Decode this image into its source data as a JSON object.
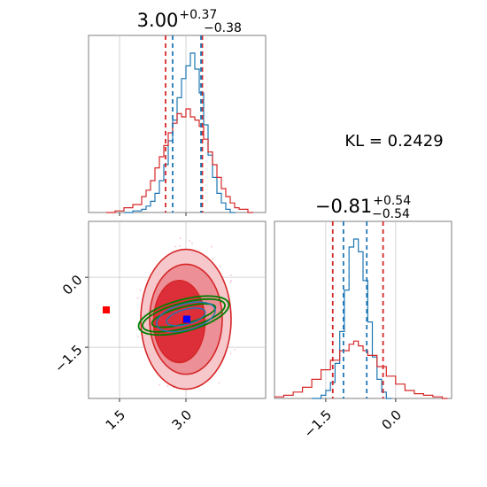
{
  "chart_data": [
    {
      "type": "histogram",
      "panel": "top-left marginal (parameter 1)",
      "title": {
        "main": "3.00",
        "sup": "+0.37",
        "sub": "−0.38"
      },
      "xlim": [
        0.8,
        4.8
      ],
      "grid": true,
      "series": [
        {
          "name": "",
          "color": "#1f77b4",
          "x": [
            1.6,
            1.8,
            2.0,
            2.1,
            2.2,
            2.3,
            2.4,
            2.5,
            2.6,
            2.7,
            2.8,
            2.9,
            3.0,
            3.1,
            3.2,
            3.3,
            3.4,
            3.5,
            3.6,
            3.7,
            3.8,
            3.9,
            4.0
          ],
          "density": [
            0.0,
            0.01,
            0.02,
            0.04,
            0.07,
            0.12,
            0.2,
            0.3,
            0.45,
            0.58,
            0.72,
            0.84,
            0.92,
            1.0,
            0.9,
            0.75,
            0.55,
            0.36,
            0.22,
            0.12,
            0.06,
            0.02,
            0.0
          ]
        },
        {
          "name": "",
          "color": "#d62728",
          "x": [
            1.2,
            1.4,
            1.6,
            1.8,
            2.0,
            2.1,
            2.2,
            2.3,
            2.4,
            2.5,
            2.6,
            2.7,
            2.8,
            2.9,
            3.0,
            3.1,
            3.2,
            3.3,
            3.4,
            3.5,
            3.6,
            3.7,
            3.8,
            3.9,
            4.0,
            4.1,
            4.2,
            4.4
          ],
          "density": [
            0.0,
            0.01,
            0.03,
            0.05,
            0.1,
            0.14,
            0.2,
            0.28,
            0.35,
            0.42,
            0.5,
            0.56,
            0.62,
            0.6,
            0.65,
            0.6,
            0.58,
            0.54,
            0.46,
            0.38,
            0.3,
            0.22,
            0.15,
            0.1,
            0.06,
            0.03,
            0.02,
            0.0
          ]
        }
      ],
      "quantile_lines": {
        "red": [
          2.54,
          3.37
        ],
        "blue": [
          2.7,
          3.34
        ]
      }
    },
    {
      "type": "contour",
      "panel": "bottom-left joint (parameter 1 vs parameter 2)",
      "xlim": [
        0.8,
        4.8
      ],
      "ylim": [
        -2.6,
        1.2
      ],
      "xticks": [
        "1.5",
        "3.0"
      ],
      "yticks": [
        "0.0",
        "−1.5"
      ],
      "xtick_values": [
        1.5,
        3.0
      ],
      "ytick_values": [
        0.0,
        -1.5
      ],
      "grid": true,
      "colors": {
        "red": "#d62728",
        "blue": "#1f77b4",
        "green": "#008000"
      },
      "red_contours": [
        {
          "center": [
            3.0,
            -0.9
          ],
          "rx": 1.02,
          "ry": 1.5,
          "angle": 0
        },
        {
          "center": [
            3.0,
            -0.9
          ],
          "rx": 0.82,
          "ry": 1.18,
          "angle": 0
        },
        {
          "center": [
            2.85,
            -0.95
          ],
          "rx": 0.58,
          "ry": 0.88,
          "angle": 0
        }
      ],
      "green_contours": [
        {
          "center": [
            2.95,
            -0.82
          ],
          "rx": 0.74,
          "ry": 0.18,
          "angle": -15
        },
        {
          "center": [
            2.95,
            -0.82
          ],
          "rx": 0.96,
          "ry": 0.27,
          "angle": -15
        },
        {
          "center": [
            2.95,
            -0.82
          ],
          "rx": 1.05,
          "ry": 0.34,
          "angle": -15
        }
      ],
      "blue_contours": [
        {
          "center": [
            3.0,
            -0.85
          ],
          "rx": 0.45,
          "ry": 0.16,
          "angle": -15
        },
        {
          "center": [
            3.0,
            -0.85
          ],
          "rx": 0.68,
          "ry": 0.28,
          "angle": -15
        }
      ],
      "markers": [
        {
          "color": "#ff0000",
          "shape": "square",
          "x": 1.2,
          "y": -0.7
        },
        {
          "color": "#ff0000",
          "shape": "square",
          "x": 3.0,
          "y": -0.92
        },
        {
          "color": "#0000ff",
          "shape": "square",
          "x": 3.02,
          "y": -0.9
        }
      ]
    },
    {
      "type": "histogram",
      "panel": "bottom-right marginal (parameter 2)",
      "title": {
        "main": "−0.81",
        "sup": "+0.54",
        "sub": "−0.54"
      },
      "xlim": [
        -2.6,
        1.2
      ],
      "xticks": [
        "−1.5",
        "0.0"
      ],
      "xtick_values": [
        -1.5,
        0.0
      ],
      "grid": true,
      "series": [
        {
          "name": "",
          "color": "#1f77b4",
          "x": [
            -1.8,
            -1.6,
            -1.5,
            -1.4,
            -1.3,
            -1.2,
            -1.1,
            -1.0,
            -0.9,
            -0.8,
            -0.7,
            -0.6,
            -0.5,
            -0.4,
            -0.3,
            -0.2
          ],
          "density": [
            0.0,
            0.02,
            0.05,
            0.1,
            0.22,
            0.42,
            0.68,
            0.95,
            1.0,
            0.92,
            0.74,
            0.48,
            0.26,
            0.12,
            0.04,
            0.0
          ]
        },
        {
          "name": "",
          "color": "#d62728",
          "x": [
            -2.6,
            -2.4,
            -2.2,
            -2.0,
            -1.8,
            -1.6,
            -1.4,
            -1.2,
            -1.0,
            -0.9,
            -0.8,
            -0.7,
            -0.6,
            -0.4,
            -0.2,
            0.0,
            0.2,
            0.4,
            0.6,
            0.8,
            1.0
          ],
          "density": [
            0.01,
            0.02,
            0.04,
            0.07,
            0.12,
            0.18,
            0.24,
            0.3,
            0.34,
            0.36,
            0.33,
            0.3,
            0.27,
            0.2,
            0.14,
            0.09,
            0.05,
            0.03,
            0.02,
            0.01,
            0.0
          ]
        }
      ],
      "quantile_lines": {
        "red": [
          -1.35,
          -0.27
        ],
        "blue": [
          -1.12,
          -0.62
        ]
      }
    }
  ],
  "annotation": {
    "label": "KL = 0.2429"
  }
}
